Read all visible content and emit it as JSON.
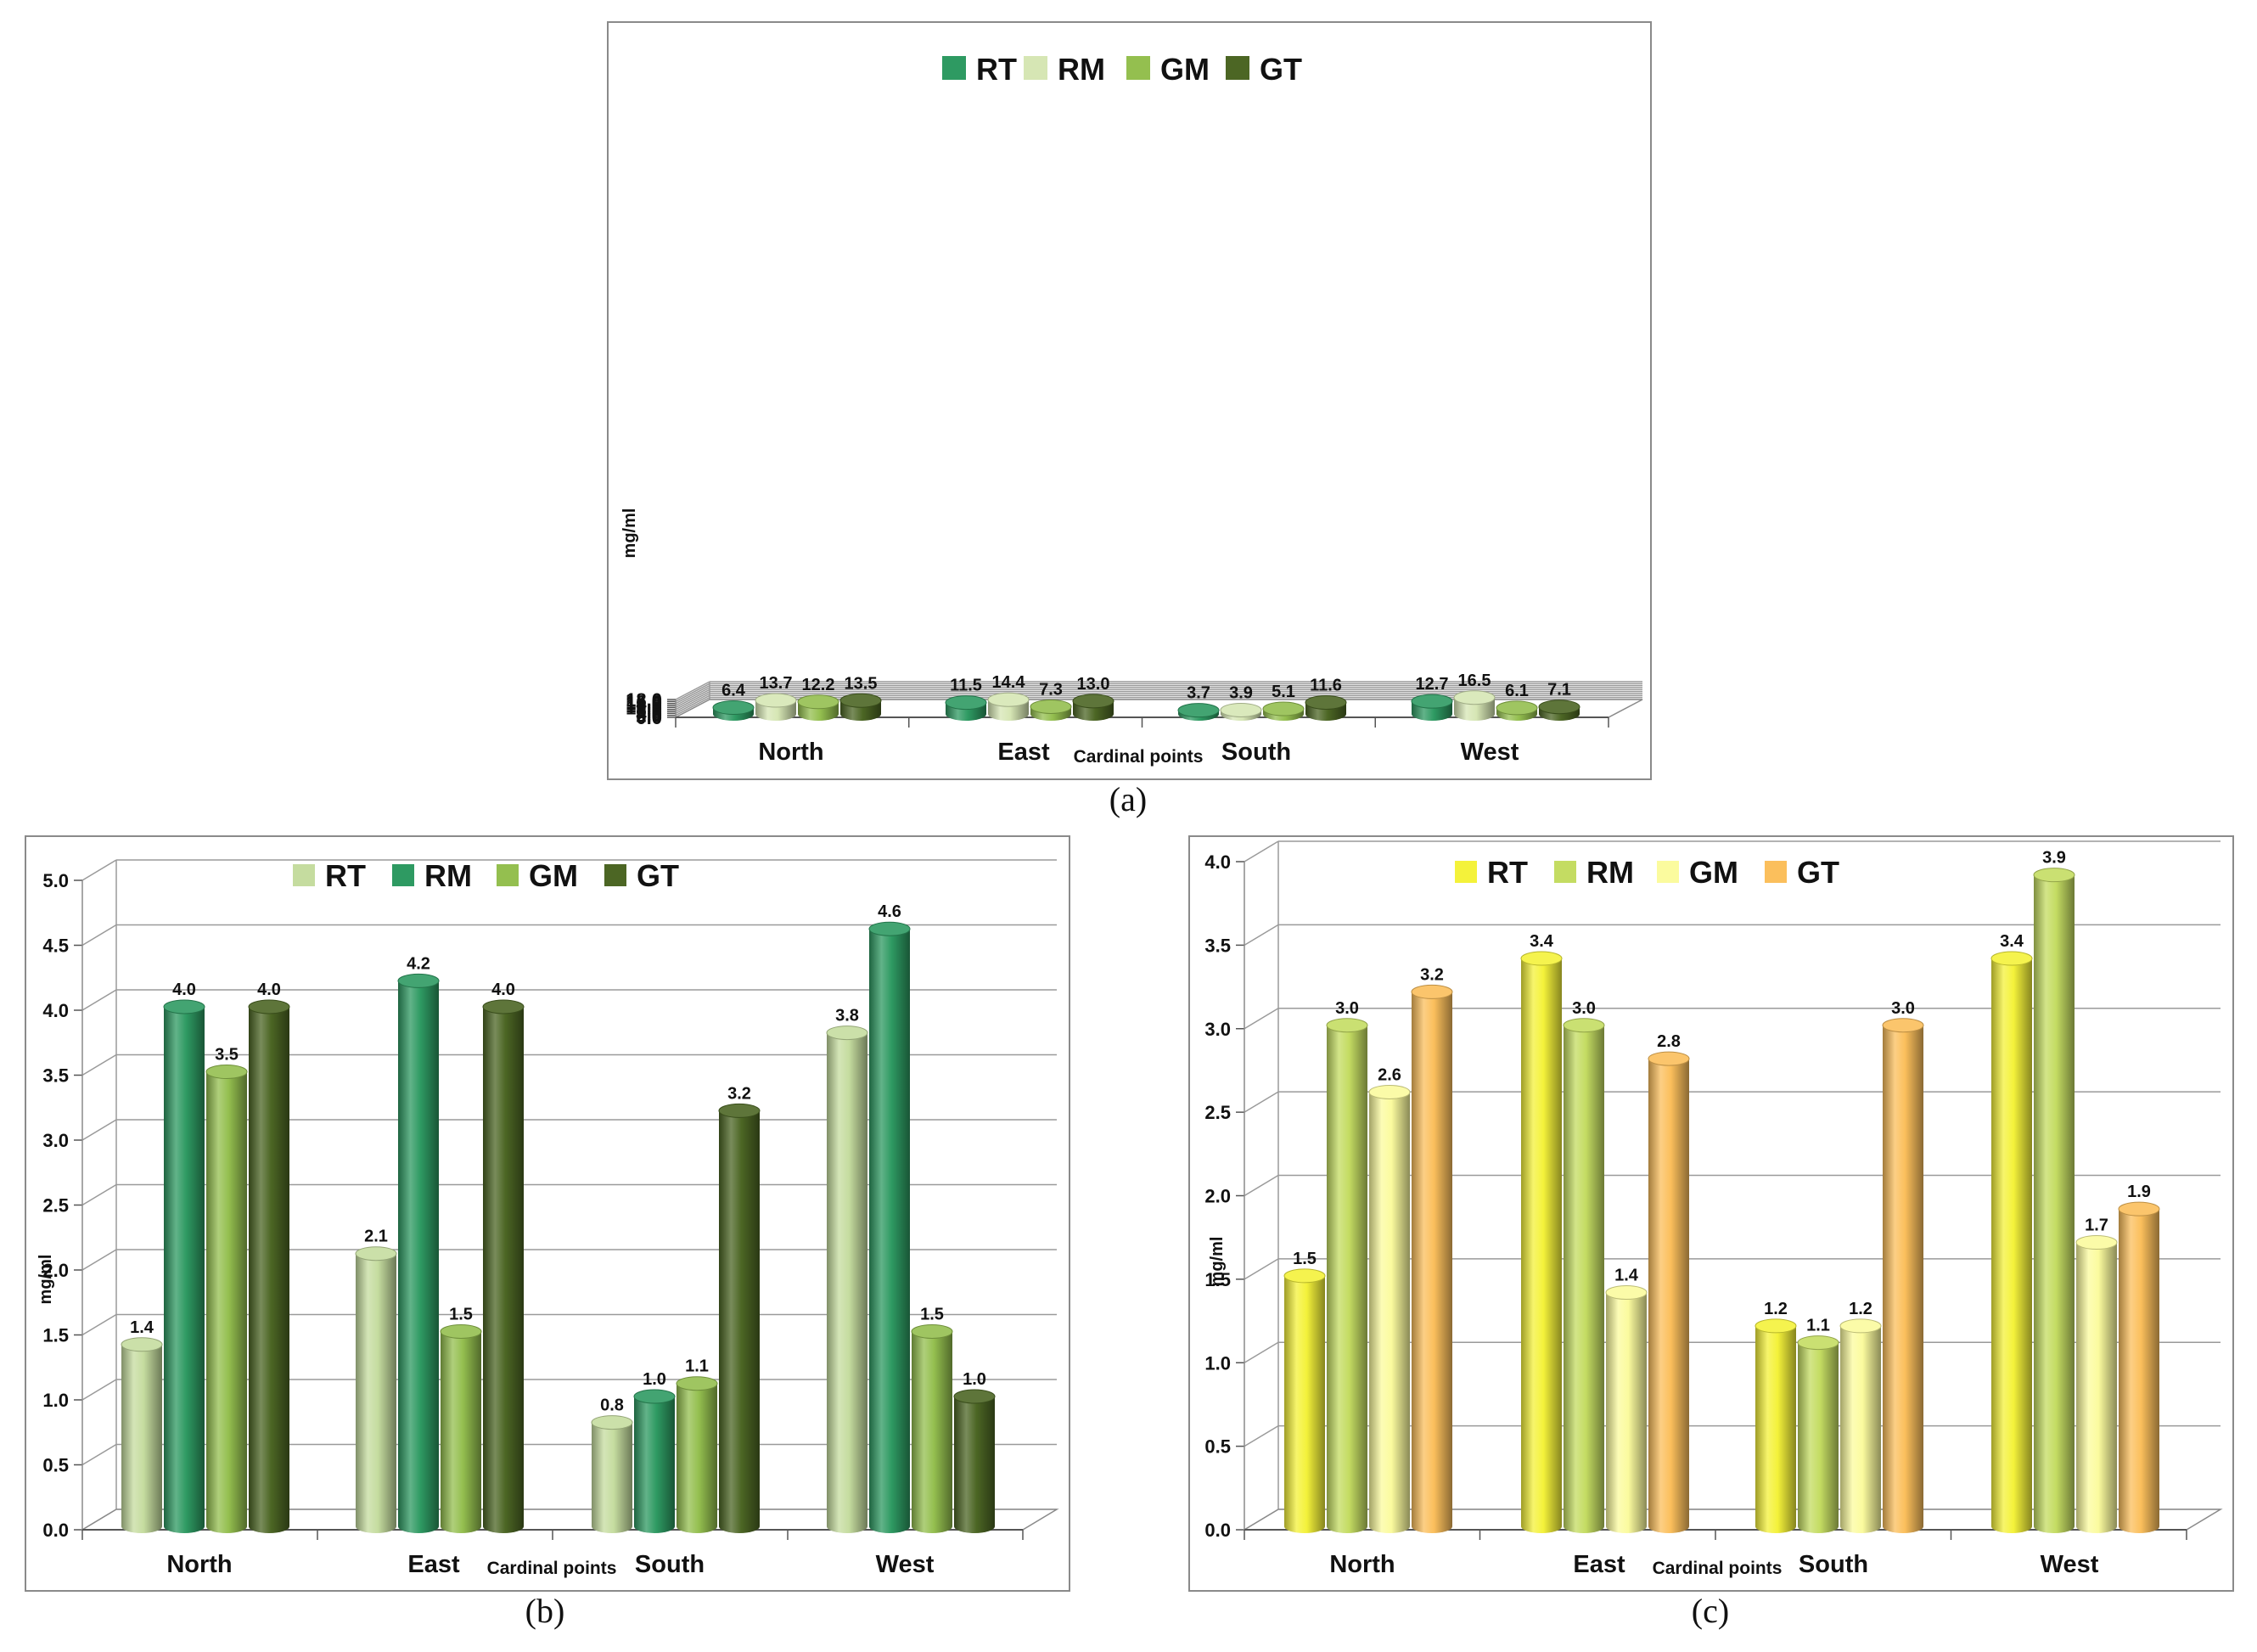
{
  "chart_data": [
    {
      "type": "bar",
      "caption": "(a)",
      "categories": [
        "North",
        "East",
        "South",
        "West"
      ],
      "series": [
        {
          "name": "RT",
          "color": "#2e9a62",
          "values": [
            6.4,
            11.5,
            3.7,
            12.7
          ]
        },
        {
          "name": "RM",
          "color": "#d6e6b4",
          "values": [
            13.7,
            14.4,
            3.9,
            16.5
          ]
        },
        {
          "name": "GM",
          "color": "#94bf4f",
          "values": [
            12.2,
            7.3,
            5.1,
            6.1
          ]
        },
        {
          "name": "GT",
          "color": "#4c6624",
          "values": [
            13.5,
            13.0,
            11.6,
            7.1
          ]
        }
      ],
      "value_labels": [
        [
          "6.4",
          "11.5",
          "3.7",
          "12.7"
        ],
        [
          "13.7",
          "14.4",
          "3.9",
          "16.5"
        ],
        [
          "12.2",
          "7.3",
          "5.1",
          "6.1"
        ],
        [
          "13.5",
          "13.0",
          "11.6",
          "7.1"
        ]
      ],
      "y_ticks": [
        "0.0",
        "2.0",
        "4.0",
        "6.0",
        "8.0",
        "10.0",
        "12.0",
        "14.0",
        "16.0",
        "18.0"
      ],
      "ylim": [
        0,
        18
      ],
      "xlabel": "Cardinal points",
      "ylabel": "mg/ml",
      "legend": "top"
    },
    {
      "type": "bar",
      "caption": "(b)",
      "categories": [
        "North",
        "East",
        "South",
        "West"
      ],
      "series": [
        {
          "name": "RT",
          "color": "#c5dc9f",
          "values": [
            1.4,
            2.1,
            0.8,
            3.8
          ]
        },
        {
          "name": "RM",
          "color": "#2e9a62",
          "values": [
            4.0,
            4.2,
            1.0,
            4.6
          ]
        },
        {
          "name": "GM",
          "color": "#94bf4f",
          "values": [
            3.5,
            1.5,
            1.1,
            1.5
          ]
        },
        {
          "name": "GT",
          "color": "#4c6624",
          "values": [
            4.0,
            4.0,
            3.2,
            1.0
          ]
        }
      ],
      "value_labels": [
        [
          "1.4",
          "2.1",
          "0.8",
          "3.8"
        ],
        [
          "4.0",
          "4.2",
          "1.0",
          "4.6"
        ],
        [
          "3.5",
          "1.5",
          "1.1",
          "1.5"
        ],
        [
          "4.0",
          "4.0",
          "3.2",
          "1.0"
        ]
      ],
      "y_ticks": [
        "0.0",
        "0.5",
        "1.0",
        "1.5",
        "2.0",
        "2.5",
        "3.0",
        "3.5",
        "4.0",
        "4.5",
        "5.0"
      ],
      "ylim": [
        0,
        5
      ],
      "xlabel": "Cardinal points",
      "ylabel": "mg/ml",
      "legend": "top"
    },
    {
      "type": "bar",
      "caption": "(c)",
      "categories": [
        "North",
        "East",
        "South",
        "West"
      ],
      "series": [
        {
          "name": "RT",
          "color": "#f4f23a",
          "values": [
            1.5,
            3.4,
            1.2,
            3.4
          ]
        },
        {
          "name": "RM",
          "color": "#c4dc62",
          "values": [
            3.0,
            3.0,
            1.1,
            3.9
          ]
        },
        {
          "name": "GM",
          "color": "#fbfb9e",
          "values": [
            2.6,
            1.4,
            1.2,
            1.7
          ]
        },
        {
          "name": "GT",
          "color": "#fbbf5c",
          "values": [
            3.2,
            2.8,
            3.0,
            1.9
          ]
        }
      ],
      "value_labels": [
        [
          "1.5",
          "3.4",
          "1.2",
          "3.4"
        ],
        [
          "3.0",
          "3.0",
          "1.1",
          "3.9"
        ],
        [
          "2.6",
          "1.4",
          "1.2",
          "1.7"
        ],
        [
          "3.2",
          "2.8",
          "3.0",
          "1.9"
        ]
      ],
      "y_ticks": [
        "0.0",
        "0.5",
        "1.0",
        "1.5",
        "2.0",
        "2.5",
        "3.0",
        "3.5",
        "4.0"
      ],
      "ylim": [
        0,
        4
      ],
      "xlabel": "Cardinal points",
      "ylabel": "mg/ml",
      "legend": "top"
    }
  ]
}
